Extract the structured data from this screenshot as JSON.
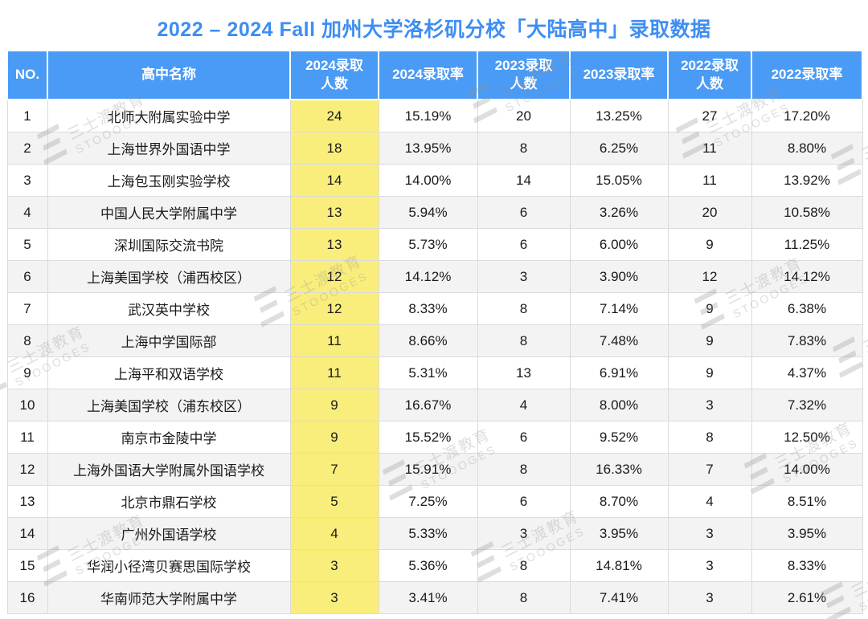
{
  "title": "2022 – 2024 Fall 加州大学洛杉矶分校「大陆高中」录取数据",
  "watermark": {
    "logo_glyph": "Ξ",
    "line1": "三士渡教育",
    "line2": "STOOOGES"
  },
  "colors": {
    "header_bg": "#4A9BF5",
    "title": "#3E8EF2",
    "highlight": "#F9EE7B",
    "row_alt": "#F3F3F3",
    "border": "#DBDBDB",
    "text": "#1A1A1A"
  },
  "chart_data": {
    "type": "table",
    "title": "2022 – 2024 Fall 加州大学洛杉矶分校「大陆高中」录取数据",
    "columns": [
      {
        "key": "no",
        "label": "NO."
      },
      {
        "key": "school",
        "label": "高中名称"
      },
      {
        "key": "adm2024",
        "label": "2024录取\n人数",
        "highlight": true
      },
      {
        "key": "rate2024",
        "label": "2024录取率"
      },
      {
        "key": "adm2023",
        "label": "2023录取\n人数"
      },
      {
        "key": "rate2023",
        "label": "2023录取率"
      },
      {
        "key": "adm2022",
        "label": "2022录取\n人数"
      },
      {
        "key": "rate2022",
        "label": "2022录取率"
      }
    ],
    "rows": [
      {
        "no": "1",
        "school": "北师大附属实验中学",
        "adm2024": "24",
        "rate2024": "15.19%",
        "adm2023": "20",
        "rate2023": "13.25%",
        "adm2022": "27",
        "rate2022": "17.20%"
      },
      {
        "no": "2",
        "school": "上海世界外国语中学",
        "adm2024": "18",
        "rate2024": "13.95%",
        "adm2023": "8",
        "rate2023": "6.25%",
        "adm2022": "11",
        "rate2022": "8.80%"
      },
      {
        "no": "3",
        "school": "上海包玉刚实验学校",
        "adm2024": "14",
        "rate2024": "14.00%",
        "adm2023": "14",
        "rate2023": "15.05%",
        "adm2022": "11",
        "rate2022": "13.92%"
      },
      {
        "no": "4",
        "school": "中国人民大学附属中学",
        "adm2024": "13",
        "rate2024": "5.94%",
        "adm2023": "6",
        "rate2023": "3.26%",
        "adm2022": "20",
        "rate2022": "10.58%"
      },
      {
        "no": "5",
        "school": "深圳国际交流书院",
        "adm2024": "13",
        "rate2024": "5.73%",
        "adm2023": "6",
        "rate2023": "6.00%",
        "adm2022": "9",
        "rate2022": "11.25%"
      },
      {
        "no": "6",
        "school": "上海美国学校（浦西校区）",
        "adm2024": "12",
        "rate2024": "14.12%",
        "adm2023": "3",
        "rate2023": "3.90%",
        "adm2022": "12",
        "rate2022": "14.12%"
      },
      {
        "no": "7",
        "school": "武汉英中学校",
        "adm2024": "12",
        "rate2024": "8.33%",
        "adm2023": "8",
        "rate2023": "7.14%",
        "adm2022": "9",
        "rate2022": "6.38%"
      },
      {
        "no": "8",
        "school": "上海中学国际部",
        "adm2024": "11",
        "rate2024": "8.66%",
        "adm2023": "8",
        "rate2023": "7.48%",
        "adm2022": "9",
        "rate2022": "7.83%"
      },
      {
        "no": "9",
        "school": "上海平和双语学校",
        "adm2024": "11",
        "rate2024": "5.31%",
        "adm2023": "13",
        "rate2023": "6.91%",
        "adm2022": "9",
        "rate2022": "4.37%"
      },
      {
        "no": "10",
        "school": "上海美国学校（浦东校区）",
        "adm2024": "9",
        "rate2024": "16.67%",
        "adm2023": "4",
        "rate2023": "8.00%",
        "adm2022": "3",
        "rate2022": "7.32%"
      },
      {
        "no": "11",
        "school": "南京市金陵中学",
        "adm2024": "9",
        "rate2024": "15.52%",
        "adm2023": "6",
        "rate2023": "9.52%",
        "adm2022": "8",
        "rate2022": "12.50%"
      },
      {
        "no": "12",
        "school": "上海外国语大学附属外国语学校",
        "adm2024": "7",
        "rate2024": "15.91%",
        "adm2023": "8",
        "rate2023": "16.33%",
        "adm2022": "7",
        "rate2022": "14.00%"
      },
      {
        "no": "13",
        "school": "北京市鼎石学校",
        "adm2024": "5",
        "rate2024": "7.25%",
        "adm2023": "6",
        "rate2023": "8.70%",
        "adm2022": "4",
        "rate2022": "8.51%"
      },
      {
        "no": "14",
        "school": "广州外国语学校",
        "adm2024": "4",
        "rate2024": "5.33%",
        "adm2023": "3",
        "rate2023": "3.95%",
        "adm2022": "3",
        "rate2022": "3.95%"
      },
      {
        "no": "15",
        "school": "华润小径湾贝赛思国际学校",
        "adm2024": "3",
        "rate2024": "5.36%",
        "adm2023": "8",
        "rate2023": "14.81%",
        "adm2022": "3",
        "rate2022": "8.33%"
      },
      {
        "no": "16",
        "school": "华南师范大学附属中学",
        "adm2024": "3",
        "rate2024": "3.41%",
        "adm2023": "8",
        "rate2023": "7.41%",
        "adm2022": "3",
        "rate2022": "2.61%"
      }
    ]
  }
}
